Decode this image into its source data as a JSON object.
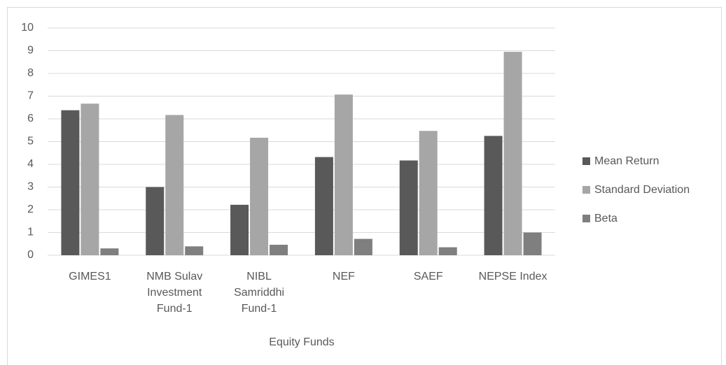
{
  "chart_data": {
    "type": "bar",
    "x_label": "Equity Funds",
    "categories": [
      "GIMES1",
      "NMB Sulav Investment Fund-1",
      "NIBL Samriddhi Fund-1",
      "NEF",
      "SAEF",
      "NEPSE Index"
    ],
    "series": [
      {
        "name": "Mean Return",
        "color": "#595959",
        "values": [
          6.38,
          3.0,
          2.22,
          4.32,
          4.17,
          5.25
        ]
      },
      {
        "name": "Standard Deviation",
        "color": "#a6a6a6",
        "values": [
          6.67,
          6.17,
          5.17,
          7.07,
          5.47,
          8.95
        ]
      },
      {
        "name": "Beta",
        "color": "#7f7f7f",
        "values": [
          0.3,
          0.39,
          0.46,
          0.72,
          0.35,
          1.0
        ]
      }
    ],
    "ylim": [
      0,
      10
    ],
    "yticks": [
      0,
      1,
      2,
      3,
      4,
      5,
      6,
      7,
      8,
      9,
      10
    ],
    "grid": true,
    "legend": "right"
  }
}
